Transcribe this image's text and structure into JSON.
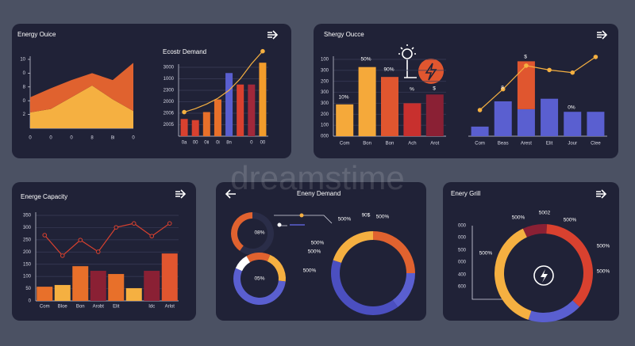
{
  "watermark": "dreamstime",
  "chart_data": [
    {
      "type": "area",
      "title": "Energy Ouice",
      "categories": [
        "0",
        "0",
        "0",
        "8",
        "8i",
        "0"
      ],
      "ylim": [
        0,
        10
      ],
      "yticks": [
        10,
        {
          "value": 8,
          "label": "0"
        },
        {
          "value": 6,
          "label": "8"
        },
        {
          "value": 4,
          "label": "0"
        },
        2
      ],
      "series": [
        {
          "color": "#f5b041",
          "values": [
            2.3,
            2.8,
            4.5,
            6.2,
            4.2,
            2.5
          ]
        },
        {
          "color": "#e0622f",
          "values": [
            2.2,
            3,
            2.5,
            1.8,
            2.8,
            7
          ]
        }
      ]
    },
    {
      "type": "bar",
      "title": "Ecostr Demand",
      "categories": [
        "0a",
        "00",
        "0ii",
        "0i",
        "8n",
        null,
        "0",
        "00"
      ],
      "ylim": [
        0,
        6
      ],
      "grid": true,
      "yticks": [
        {
          "value": 6,
          "label": "3000"
        },
        {
          "value": 5,
          "label": "1000"
        },
        {
          "value": 4,
          "label": "2300"
        },
        {
          "value": 3,
          "label": "2000"
        },
        {
          "value": 2,
          "label": "2006"
        },
        {
          "value": 1,
          "label": "2005"
        }
      ],
      "series": [
        {
          "colors": [
            "#d9412f",
            "#d9412f",
            "#e8702a",
            "#e8702a",
            "#5a5fd0",
            "#d9412f",
            "#a0283a",
            "#f39c2b"
          ],
          "values": [
            1.5,
            1.4,
            2.1,
            3.2,
            5.5,
            4.5,
            4.5,
            6.4
          ]
        },
        {
          "type": "line",
          "marker": "ends",
          "color": "#f5b041",
          "values": [
            2.1,
            2.4,
            2.8,
            3.3,
            4.0,
            5.0,
            6.3,
            7.4
          ]
        }
      ]
    },
    {
      "type": "bar",
      "title": "Shergy Oucce",
      "categories": [
        "Com",
        "Bon",
        "Bon",
        "Ach",
        "Arot"
      ],
      "ylim": [
        0,
        7
      ],
      "grid": true,
      "yticks": [
        {
          "value": 7,
          "label": "100"
        },
        {
          "value": 6,
          "label": "300"
        },
        {
          "value": 5,
          "label": "200"
        },
        {
          "value": 4,
          "label": "300"
        },
        {
          "value": 3,
          "label": "300"
        },
        {
          "value": 2,
          "label": "200"
        },
        {
          "value": 1,
          "label": "100"
        },
        {
          "value": 0,
          "label": "000"
        }
      ],
      "series": [
        {
          "colors": [
            "#f5a93a",
            "#f5a93a",
            "#e0562f",
            "#c8302e",
            "#8a2034"
          ],
          "values": [
            2.9,
            6.3,
            5.4,
            3.0,
            3.8
          ]
        }
      ],
      "annotations": [
        "10%",
        "50%",
        "90%",
        "%",
        "$"
      ]
    },
    {
      "type": "bar",
      "categories": [
        "Com",
        "Beas",
        "Arest",
        "Elit",
        "Jour",
        "Ctee"
      ],
      "ylim": [
        0,
        100
      ],
      "series": [
        {
          "color": "#5a5fd0",
          "values": [
            11,
            40,
            31,
            43,
            28,
            28
          ]
        },
        {
          "color": "#e0562f",
          "values": [
            null,
            null,
            55,
            null,
            null,
            null
          ]
        },
        {
          "type": "line",
          "marker": "dot",
          "color": "#f5b041",
          "values": [
            30,
            54,
            81,
            76,
            73,
            91
          ]
        }
      ],
      "annotations": [
        "8",
        "$",
        "0%"
      ]
    },
    {
      "type": "bar",
      "title": "Energe Capacity",
      "categories": [
        "Com",
        "Bloe",
        "Bon",
        "Arobt",
        "Elit",
        null,
        "Idc",
        "Arlot"
      ],
      "ylim": [
        0,
        350
      ],
      "grid": true,
      "yticks": [
        0,
        50,
        100,
        150,
        200,
        250,
        300,
        350
      ],
      "series": [
        {
          "colors": [
            "#e8702a",
            "#f5b041",
            "#e8702a",
            "#8a2034",
            "#e8702a",
            "#f5b041",
            "#8a2034",
            "#e0562f"
          ],
          "values": [
            58,
            65,
            142,
            123,
            110,
            52,
            123,
            194
          ]
        },
        {
          "type": "line",
          "marker": "ring",
          "color": "#d9412f",
          "values": [
            269,
            185,
            249,
            201,
            301,
            317,
            265,
            317
          ]
        }
      ]
    },
    {
      "type": "donut",
      "title": "Eneny Demand",
      "values": [
        20,
        25,
        15,
        40
      ],
      "colors": [
        "#f5b041",
        "#e0622f",
        "#5a5fd0",
        "#4b4fc0"
      ],
      "annotations": [
        "500%",
        "90$",
        "500%",
        "500%",
        "500%",
        "500%"
      ]
    },
    {
      "type": "donut",
      "values": [
        40,
        60
      ],
      "colors": [
        "#e0622f",
        "#2a2d48"
      ],
      "annotations": [
        "08%"
      ]
    },
    {
      "type": "donut",
      "values": [
        15,
        20,
        55,
        10
      ],
      "colors": [
        "#e0622f",
        "#f5b041",
        "#5a5fd0",
        "#ffffff"
      ],
      "annotations": [
        "05%"
      ]
    },
    {
      "type": "donut",
      "title": "Enery Grill",
      "values": [
        8,
        36,
        18,
        38
      ],
      "colors": [
        "#8a2034",
        "#d9412f",
        "#5a5fd0",
        "#f5b041"
      ],
      "axis_labels": [
        "000",
        "000",
        "500",
        "000",
        "400",
        "600"
      ],
      "annotations": [
        "500%",
        "5002",
        "500%",
        "500%",
        "500%",
        "500%"
      ]
    }
  ]
}
